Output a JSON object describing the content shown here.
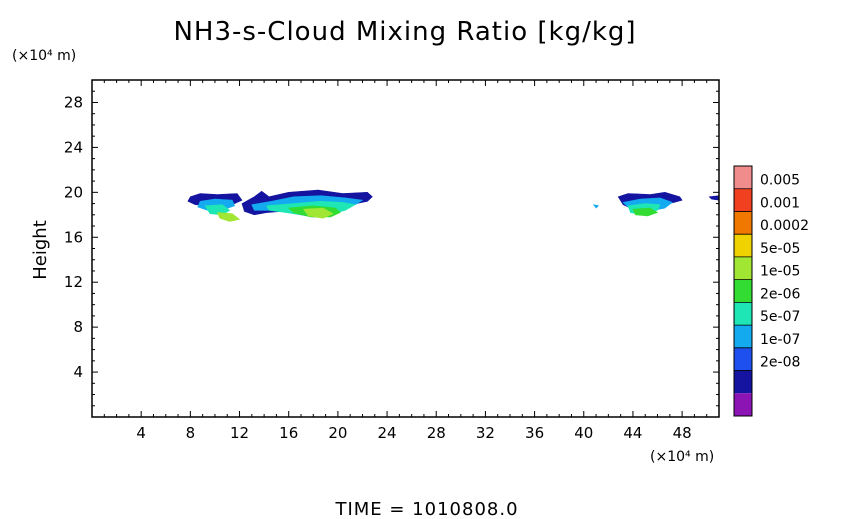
{
  "chart_data": {
    "type": "heatmap",
    "title": "NH3-s-Cloud Mixing Ratio [kg/kg]",
    "ylabel": "Height",
    "y_unit": "(×10⁴ m)",
    "x_unit": "(×10⁴ m)",
    "footer": "TIME = 1010808.0",
    "xlim": [
      0,
      51
    ],
    "ylim": [
      0,
      30
    ],
    "x_ticks": [
      4,
      8,
      12,
      16,
      20,
      24,
      28,
      32,
      36,
      40,
      44,
      48
    ],
    "y_ticks": [
      4,
      8,
      12,
      16,
      20,
      24,
      28
    ],
    "colorbar": {
      "labels": [
        "0.005",
        "0.001",
        "0.0002",
        "5e-05",
        "1e-05",
        "2e-06",
        "5e-07",
        "1e-07",
        "2e-08"
      ],
      "colors": [
        "#f08c8c",
        "#f04020",
        "#f07800",
        "#f0d200",
        "#a0e632",
        "#32dc32",
        "#1ee6b4",
        "#14aaf0",
        "#1e50f0",
        "#1414a0",
        "#8c14b4"
      ]
    },
    "regions": [
      {
        "layers": [
          {
            "color": "#1414a0",
            "x": [
              8.0,
              8.8,
              10.2,
              11.8,
              12.2,
              11.6,
              10.0,
              8.4,
              7.8
            ],
            "y": [
              19.6,
              19.9,
              19.8,
              19.9,
              19.3,
              19.0,
              18.8,
              18.9,
              19.2
            ]
          },
          {
            "color": "#14aaf0",
            "x": [
              8.8,
              10.0,
              11.4,
              11.6,
              10.8,
              9.4,
              8.6
            ],
            "y": [
              19.2,
              19.4,
              19.3,
              18.8,
              18.5,
              18.4,
              18.7
            ]
          },
          {
            "color": "#1ee6b4",
            "x": [
              9.2,
              10.6,
              11.2,
              10.6,
              9.6
            ],
            "y": [
              18.8,
              18.9,
              18.4,
              18.0,
              18.1
            ]
          },
          {
            "color": "#a0e632",
            "x": [
              10.2,
              11.4,
              12.0,
              11.2,
              10.4
            ],
            "y": [
              18.2,
              18.1,
              17.6,
              17.4,
              17.7
            ]
          }
        ]
      },
      {
        "layers": [
          {
            "color": "#1414a0",
            "x": [
              12.2,
              13.2,
              13.8,
              14.4,
              16.0,
              18.4,
              20.4,
              22.4,
              22.8,
              22.4,
              20.6,
              19.6,
              18.0,
              15.4,
              14.2,
              13.2,
              12.4
            ],
            "y": [
              19.0,
              19.6,
              20.1,
              19.6,
              20.0,
              20.2,
              19.9,
              20.0,
              19.6,
              19.2,
              18.8,
              18.0,
              17.8,
              18.3,
              18.2,
              18.0,
              18.3
            ]
          },
          {
            "color": "#14aaf0",
            "x": [
              13.0,
              14.6,
              16.4,
              18.6,
              20.6,
              22.0,
              21.4,
              19.8,
              18.0,
              15.6,
              14.2,
              13.2
            ],
            "y": [
              18.9,
              19.2,
              19.6,
              19.7,
              19.5,
              19.3,
              18.9,
              18.4,
              18.1,
              18.5,
              18.4,
              18.4
            ]
          },
          {
            "color": "#1ee6b4",
            "x": [
              14.2,
              16.4,
              18.6,
              20.4,
              21.4,
              20.6,
              19.2,
              17.6,
              15.8,
              14.4
            ],
            "y": [
              18.8,
              19.0,
              19.2,
              19.1,
              18.9,
              18.4,
              18.0,
              17.9,
              18.2,
              18.4
            ]
          },
          {
            "color": "#32dc32",
            "x": [
              16.0,
              18.0,
              19.8,
              20.2,
              19.4,
              17.8,
              16.4
            ],
            "y": [
              18.6,
              18.8,
              18.6,
              18.2,
              17.8,
              17.8,
              18.2
            ]
          },
          {
            "color": "#a0e632",
            "x": [
              17.2,
              18.8,
              19.6,
              18.8,
              17.6
            ],
            "y": [
              18.5,
              18.6,
              18.1,
              17.7,
              17.9
            ]
          }
        ]
      },
      {
        "layers": [
          {
            "color": "#14aaf0",
            "x": [
              40.8,
              41.2,
              41.0
            ],
            "y": [
              18.9,
              18.8,
              18.6
            ]
          }
        ]
      },
      {
        "layers": [
          {
            "color": "#1414a0",
            "x": [
              42.8,
              43.6,
              45.4,
              46.6,
              47.8,
              48.0,
              47.0,
              45.6,
              44.0,
              43.2
            ],
            "y": [
              19.6,
              19.9,
              19.8,
              20.0,
              19.6,
              19.3,
              19.0,
              18.7,
              18.5,
              18.9
            ]
          },
          {
            "color": "#14aaf0",
            "x": [
              43.2,
              44.6,
              46.2,
              47.2,
              46.6,
              45.2,
              43.8
            ],
            "y": [
              19.1,
              19.4,
              19.5,
              19.1,
              18.6,
              18.3,
              18.5
            ]
          },
          {
            "color": "#1ee6b4",
            "x": [
              43.6,
              45.0,
              46.2,
              46.0,
              44.8,
              43.8
            ],
            "y": [
              18.8,
              19.0,
              18.9,
              18.4,
              18.0,
              18.2
            ]
          },
          {
            "color": "#32dc32",
            "x": [
              44.0,
              45.4,
              46.0,
              45.2,
              44.2
            ],
            "y": [
              18.5,
              18.6,
              18.2,
              17.9,
              18.0
            ]
          }
        ]
      },
      {
        "layers": [
          {
            "color": "#1414a0",
            "x": [
              50.2,
              51.0,
              51.0,
              50.4
            ],
            "y": [
              19.6,
              19.7,
              19.3,
              19.4
            ]
          }
        ]
      }
    ]
  }
}
